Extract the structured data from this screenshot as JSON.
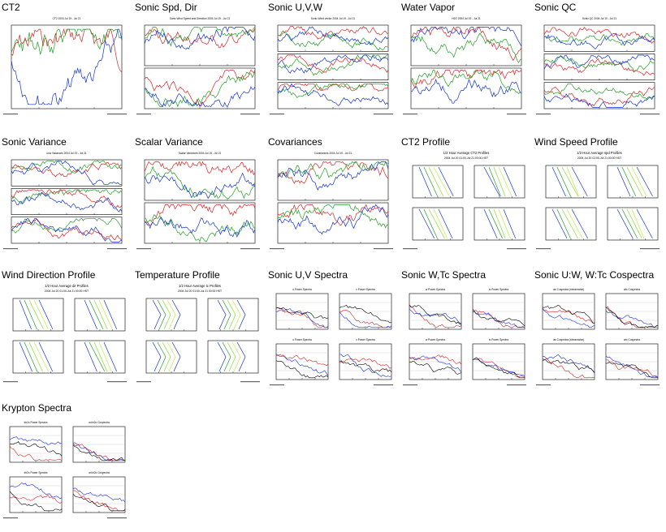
{
  "page": {
    "sections": [
      {
        "id": "ct2",
        "title": "CT2",
        "kind": "ts1",
        "subtitles": [
          "CT2 2004 Jul 19 - Jul 21"
        ]
      },
      {
        "id": "sonic-spd-dir",
        "title": "Sonic Spd, Dir",
        "kind": "ts2",
        "subtitles": [
          "Sonic Wind Speed and Direction 2004 Jul 19 - Jul 21"
        ]
      },
      {
        "id": "sonic-uvw",
        "title": "Sonic U,V,W",
        "kind": "ts3",
        "subtitles": [
          "Sonic Wind vector 2004 Jul 19 - Jul 21"
        ]
      },
      {
        "id": "water-vapor",
        "title": "Water Vapor",
        "kind": "ts2",
        "subtitles": [
          "H2O 2004 Jul 19 - Jul 21"
        ]
      },
      {
        "id": "sonic-qc",
        "title": "Sonic QC",
        "kind": "ts3",
        "subtitles": [
          "Sonic QC 2004 Jul 19 - Jul 21"
        ]
      },
      {
        "id": "sonic-variance",
        "title": "Sonic Variance",
        "kind": "ts3",
        "subtitles": [
          "uvw Variances 2004 Jul 19 - Jul 21"
        ]
      },
      {
        "id": "scalar-variance",
        "title": "Scalar Variance",
        "kind": "ts2",
        "subtitles": [
          "Scalar Variances 2004 Jul 19 - Jul 21"
        ]
      },
      {
        "id": "covariances",
        "title": "Covariances",
        "kind": "ts2",
        "subtitles": [
          "Covariances 2004 Jul 19 - Jul 21"
        ]
      },
      {
        "id": "ct2-profile",
        "title": "CT2 Profile",
        "kind": "prof",
        "subtitles": [
          "1/2 Hour Average CT2 Profiles",
          "2004 Jul 20 01:00-Jul 21 00:00 HST"
        ]
      },
      {
        "id": "wind-speed-profile",
        "title": "Wind Speed Profile",
        "kind": "prof",
        "subtitles": [
          "1/2 Hour Average spd Profiles",
          "2004 Jul 20 01:00-Jul 21 00:00 HST"
        ]
      },
      {
        "id": "wind-direction-profile",
        "title": "Wind Direction Profile",
        "kind": "prof",
        "subtitles": [
          "1/2 Hour Average dir Profiles",
          "2004 Jul 20 01:00-Jul 21 00:00 HST"
        ]
      },
      {
        "id": "temperature-profile",
        "title": "Temperature Profile",
        "kind": "prof2",
        "subtitles": [
          "1/2 Hour Average tc Profiles",
          "2004 Jul 20 01:00-Jul 21 00:00 HST"
        ]
      },
      {
        "id": "sonic-uv-spectra",
        "title": "Sonic U,V Spectra",
        "kind": "spec",
        "subtitles": [
          "u Power Spectra",
          "v Power Spectra",
          "u Power Spectra",
          "v Power Spectra"
        ]
      },
      {
        "id": "sonic-wtc-spectra",
        "title": "Sonic W,Tc Spectra",
        "kind": "spec",
        "subtitles": [
          "w Power Spectra",
          "tc Power Spectra",
          "w Power Spectra",
          "tc Power Spectra"
        ]
      },
      {
        "id": "sonic-uw-wtc-cospectra",
        "title": "Sonic U:W, W:Tc Cospectra",
        "kind": "spec",
        "subtitles": [
          "uw Cospectra (streamwise)",
          "wtc Cospectra",
          "uw Cospectra (streamwise)",
          "wtc Cospectra"
        ]
      },
      {
        "id": "krypton-spectra",
        "title": "Krypton Spectra",
        "kind": "spec",
        "subtitles": [
          "kh2o Power Spectra",
          "w:kh2o Cospectra",
          "kh2o Power Spectra",
          "w:kh2o Cospectra"
        ]
      }
    ]
  },
  "colors": {
    "red": "#e02020",
    "green": "#20a020",
    "blue": "#1030e0",
    "black": "#000000",
    "lime": "#88dd22",
    "yellowgreen": "#bbee44"
  }
}
